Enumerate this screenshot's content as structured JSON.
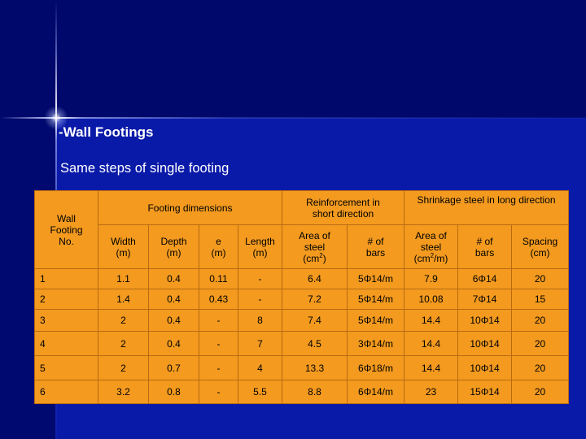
{
  "slide": {
    "title": "-Wall Footings",
    "subtitle": "Same steps of single footing"
  },
  "colors": {
    "background": "#0a1aa8",
    "table_fill": "#f39a1f",
    "text_on_bg": "#ffffff"
  },
  "table": {
    "group_headers": {
      "wall_footing_no": "Wall Footing No.",
      "footing_dimensions": "Footing dimensions",
      "reinforcement_short": "Reinforcement in short direction",
      "shrinkage_long": "Shrinkage steel in long direction"
    },
    "sub_headers": {
      "width": "Width (m)",
      "depth": "Depth (m)",
      "e": "e (m)",
      "length": "Length (m)",
      "area_short_prefix": "Area of steel (cm",
      "area_short_sup": "2",
      "area_short_suffix": ")",
      "bars_short": "# of bars",
      "area_long_prefix": "Area of steel (cm",
      "area_long_sup": "2",
      "area_long_suffix": "/m)",
      "bars_long": "# of bars",
      "spacing": "Spacing (cm)"
    },
    "rows": [
      {
        "no": "1",
        "width": "1.1",
        "depth": "0.4",
        "e": "0.11",
        "length": "-",
        "as_short": "6.4",
        "bars_short": "5Φ14/m",
        "as_long": "7.9",
        "bars_long": "6Φ14",
        "spacing": "20"
      },
      {
        "no": "2",
        "width": "1.4",
        "depth": "0.4",
        "e": "0.43",
        "length": "-",
        "as_short": "7.2",
        "bars_short": "5Φ14/m",
        "as_long": "10.08",
        "bars_long": "7Φ14",
        "spacing": "15"
      },
      {
        "no": "3",
        "width": "2",
        "depth": "0.4",
        "e": "-",
        "length": "8",
        "as_short": "7.4",
        "bars_short": "5Φ14/m",
        "as_long": "14.4",
        "bars_long": "10Φ14",
        "spacing": "20"
      },
      {
        "no": "4",
        "width": "2",
        "depth": "0.4",
        "e": "-",
        "length": "7",
        "as_short": "4.5",
        "bars_short": "3Φ14/m",
        "as_long": "14.4",
        "bars_long": "10Φ14",
        "spacing": "20"
      },
      {
        "no": "5",
        "width": "2",
        "depth": "0.7",
        "e": "-",
        "length": "4",
        "as_short": "13.3",
        "bars_short": "6Φ18/m",
        "as_long": "14.4",
        "bars_long": "10Φ14",
        "spacing": "20"
      },
      {
        "no": "6",
        "width": "3.2",
        "depth": "0.8",
        "e": "-",
        "length": "5.5",
        "as_short": "8.8",
        "bars_short": "6Φ14/m",
        "as_long": "23",
        "bars_long": "15Φ14",
        "spacing": "20"
      }
    ]
  }
}
